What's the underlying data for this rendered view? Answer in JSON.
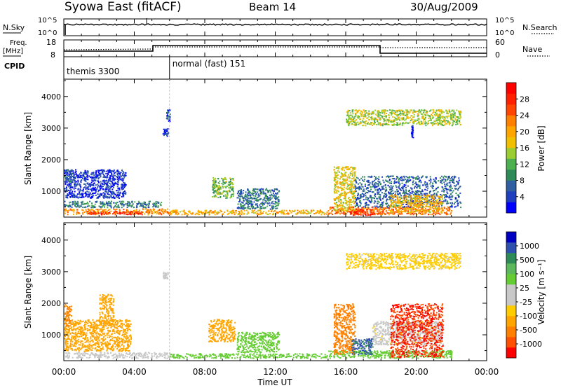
{
  "header": {
    "title": "Syowa East (fitACF)",
    "beam": "Beam 14",
    "date": "30/Aug/2009"
  },
  "side_labels": {
    "nsky": "N.Sky",
    "nsearch": "N.Search",
    "freq_line1": "Freq.",
    "freq_line2": "[MHz]",
    "nave": "Nave",
    "cpid": "CPID"
  },
  "nsky_axis": {
    "left_ticks": [
      "10^5",
      "10^0"
    ],
    "right_ticks": [
      "10^5",
      "10^0"
    ]
  },
  "freq_axis": {
    "left_ticks": [
      "18",
      "8"
    ],
    "right_ticks": [
      "60",
      "0"
    ]
  },
  "cpid_segments": [
    {
      "start_hour": 0,
      "end_hour": 6,
      "label": "themis 3300"
    },
    {
      "start_hour": 6,
      "end_hour": 24,
      "label": "normal (fast) 151"
    }
  ],
  "time_axis": {
    "label": "Time UT",
    "range_hours": [
      0,
      24
    ],
    "tick_hours": [
      0,
      4,
      8,
      12,
      16,
      20,
      24
    ],
    "tick_labels": [
      "00:00",
      "04:00",
      "08:00",
      "12:00",
      "16:00",
      "20:00",
      "00:00"
    ]
  },
  "range_axis": {
    "label": "Slant Range [km]",
    "range_km": [
      180,
      4550
    ],
    "tick_values": [
      1000,
      2000,
      3000,
      4000
    ],
    "tick_labels": [
      "1000",
      "2000",
      "3000",
      "4000"
    ]
  },
  "power_scale": {
    "label": "Power [dB]",
    "tick_labels": [
      "4",
      "8",
      "12",
      "16",
      "20",
      "24",
      "28"
    ],
    "colors": [
      "#0000ff",
      "#1f3fbf",
      "#2f5fa0",
      "#2e8b57",
      "#4caf50",
      "#9acd32",
      "#f0c000",
      "#ffa500",
      "#ff7f00",
      "#ff4500",
      "#ff2000",
      "#ff0000"
    ]
  },
  "velocity_scale": {
    "label": "Velocity [m s⁻¹]",
    "tick_labels": [
      "1000",
      "500",
      "100",
      "25",
      "-25",
      "-100",
      "-500",
      "-1000"
    ],
    "colors": [
      "#0000c0",
      "#3050b0",
      "#2e8b57",
      "#5cb85c",
      "#66cc33",
      "#c8c8c8",
      "#c8c8c8",
      "#ffcc00",
      "#ffa500",
      "#ff8000",
      "#ff5000",
      "#ff0000"
    ]
  },
  "chart_data": {
    "type": "heatmap",
    "x_unit": "hours UT",
    "y_unit": "km",
    "power_blobs": [
      {
        "t0": 0.0,
        "t1": 6.0,
        "r0": 280,
        "r1": 460,
        "power": 22
      },
      {
        "t0": 1.3,
        "t1": 4.5,
        "r0": 280,
        "r1": 380,
        "power": 28
      },
      {
        "t0": 0.0,
        "t1": 5.5,
        "r0": 500,
        "r1": 700,
        "power": 10
      },
      {
        "t0": 0.0,
        "t1": 3.5,
        "r0": 800,
        "r1": 1700,
        "power": 5
      },
      {
        "t0": 0.0,
        "t1": 0.5,
        "r0": 1300,
        "r1": 1700,
        "power": 8
      },
      {
        "t0": 5.6,
        "t1": 5.9,
        "r0": 2750,
        "r1": 3000,
        "power": 5
      },
      {
        "t0": 5.8,
        "t1": 6.0,
        "r0": 3200,
        "r1": 3600,
        "power": 6
      },
      {
        "t0": 6.0,
        "t1": 15.0,
        "r0": 280,
        "r1": 420,
        "power": 20
      },
      {
        "t0": 8.4,
        "t1": 9.6,
        "r0": 800,
        "r1": 1450,
        "power": 14
      },
      {
        "t0": 9.8,
        "t1": 12.2,
        "r0": 450,
        "r1": 1100,
        "power": 9
      },
      {
        "t0": 15.0,
        "t1": 22.0,
        "r0": 280,
        "r1": 520,
        "power": 24
      },
      {
        "t0": 16.2,
        "t1": 17.5,
        "r0": 250,
        "r1": 450,
        "power": 28
      },
      {
        "t0": 15.3,
        "t1": 16.5,
        "r0": 400,
        "r1": 1800,
        "power": 18
      },
      {
        "t0": 16.5,
        "t1": 22.5,
        "r0": 500,
        "r1": 1500,
        "power": 8
      },
      {
        "t0": 18.5,
        "t1": 21.5,
        "r0": 350,
        "r1": 900,
        "power": 20
      },
      {
        "t0": 16.0,
        "t1": 22.5,
        "r0": 3100,
        "r1": 3600,
        "power": 16
      },
      {
        "t0": 19.7,
        "t1": 19.8,
        "r0": 2700,
        "r1": 3100,
        "power": 5
      }
    ],
    "velocity_blobs": [
      {
        "t0": 0.0,
        "t1": 6.0,
        "r0": 280,
        "r1": 460,
        "velocity": 25
      },
      {
        "t0": 0.0,
        "t1": 3.8,
        "r0": 500,
        "r1": 1500,
        "velocity": -200
      },
      {
        "t0": 0.0,
        "t1": 0.4,
        "r0": 1300,
        "r1": 2000,
        "velocity": -300
      },
      {
        "t0": 2.0,
        "t1": 2.8,
        "r0": 1300,
        "r1": 2300,
        "velocity": -150
      },
      {
        "t0": 5.6,
        "t1": 5.9,
        "r0": 2800,
        "r1": 3000,
        "velocity": 20
      },
      {
        "t0": 6.0,
        "t1": 15.0,
        "r0": 280,
        "r1": 420,
        "velocity": 150
      },
      {
        "t0": 8.2,
        "t1": 9.7,
        "r0": 800,
        "r1": 1500,
        "velocity": -200
      },
      {
        "t0": 9.8,
        "t1": 12.2,
        "r0": 450,
        "r1": 1100,
        "velocity": 150
      },
      {
        "t0": 15.0,
        "t1": 22.0,
        "r0": 280,
        "r1": 520,
        "velocity": 200
      },
      {
        "t0": 15.3,
        "t1": 16.5,
        "r0": 400,
        "r1": 2000,
        "velocity": -400
      },
      {
        "t0": 16.3,
        "t1": 17.5,
        "r0": 400,
        "r1": 900,
        "velocity": 800
      },
      {
        "t0": 17.5,
        "t1": 21.5,
        "r0": 700,
        "r1": 1450,
        "velocity": 0
      },
      {
        "t0": 18.5,
        "t1": 21.5,
        "r0": 300,
        "r1": 2000,
        "velocity": -700
      },
      {
        "t0": 16.0,
        "t1": 22.5,
        "r0": 3100,
        "r1": 3600,
        "velocity": -50
      }
    ]
  }
}
